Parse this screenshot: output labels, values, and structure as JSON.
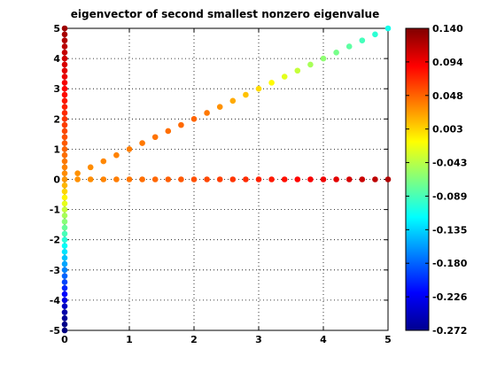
{
  "chart_data": {
    "type": "scatter",
    "title": "eigenvector of second smallest nonzero eigenvalue",
    "xlabel": "",
    "ylabel": "",
    "xlim": [
      0,
      5
    ],
    "ylim": [
      -5,
      5
    ],
    "xticks": [
      0,
      1,
      2,
      3,
      4,
      5
    ],
    "yticks": [
      -5,
      -4,
      -3,
      -2,
      -1,
      0,
      1,
      2,
      3,
      4,
      5
    ],
    "grid": true,
    "colormap": "jet",
    "clim": [
      -0.272,
      0.14
    ],
    "colorbar_ticks": [
      "0.140",
      "0.094",
      "0.048",
      "0.003",
      "-0.043",
      "-0.089",
      "-0.135",
      "-0.180",
      "-0.226",
      "-0.272"
    ],
    "series": [
      {
        "x": [
          0,
          0,
          0,
          0,
          0,
          0,
          0,
          0,
          0,
          0,
          0,
          0,
          0,
          0,
          0,
          0,
          0,
          0,
          0,
          0,
          0,
          0,
          0,
          0,
          0,
          0,
          0,
          0,
          0,
          0,
          0,
          0,
          0,
          0,
          0,
          0,
          0,
          0,
          0,
          0,
          0,
          0,
          0,
          0,
          0,
          0,
          0,
          0,
          0,
          0,
          0
        ],
        "y": [
          5,
          4.8,
          4.6,
          4.4,
          4.2,
          4,
          3.8,
          3.6,
          3.4,
          3.2,
          3,
          2.8,
          2.6,
          2.4,
          2.2,
          2,
          1.8,
          1.6,
          1.4,
          1.2,
          1,
          0.8,
          0.6,
          0.4,
          0.2,
          0,
          -0.2,
          -0.4,
          -0.6,
          -0.8,
          -1,
          -1.2,
          -1.4,
          -1.6,
          -1.8,
          -2,
          -2.2,
          -2.4,
          -2.6,
          -2.8,
          -3,
          -3.2,
          -3.4,
          -3.6,
          -3.8,
          -4,
          -4.2,
          -4.4,
          -4.6,
          -4.8,
          -5
        ],
        "c": [
          0.128,
          0.124,
          0.12,
          0.116,
          0.112,
          0.108,
          0.104,
          0.1,
          0.096,
          0.092,
          0.088,
          0.084,
          0.08,
          0.076,
          0.072,
          0.068,
          0.064,
          0.06,
          0.056,
          0.052,
          0.048,
          0.044,
          0.04,
          0.036,
          0.032,
          0.028,
          0.015,
          0.002,
          -0.011,
          -0.024,
          -0.037,
          -0.05,
          -0.063,
          -0.076,
          -0.089,
          -0.102,
          -0.115,
          -0.128,
          -0.141,
          -0.154,
          -0.167,
          -0.18,
          -0.193,
          -0.206,
          -0.219,
          -0.232,
          -0.245,
          -0.255,
          -0.262,
          -0.268,
          -0.272
        ]
      },
      {
        "x": [
          0.2,
          0.4,
          0.6,
          0.8,
          1,
          1.2,
          1.4,
          1.6,
          1.8,
          2,
          2.2,
          2.4,
          2.6,
          2.8,
          3,
          3.2,
          3.4,
          3.6,
          3.8,
          4,
          4.2,
          4.4,
          4.6,
          4.8,
          5
        ],
        "y": [
          0,
          0,
          0,
          0,
          0,
          0,
          0,
          0,
          0,
          0,
          0,
          0,
          0,
          0,
          0,
          0,
          0,
          0,
          0,
          0,
          0,
          0,
          0,
          0,
          0
        ],
        "c": [
          0.03,
          0.032,
          0.035,
          0.038,
          0.041,
          0.044,
          0.047,
          0.05,
          0.053,
          0.056,
          0.06,
          0.063,
          0.067,
          0.071,
          0.075,
          0.079,
          0.083,
          0.087,
          0.091,
          0.095,
          0.1,
          0.105,
          0.11,
          0.115,
          0.12
        ]
      },
      {
        "x": [
          0.2,
          0.4,
          0.6,
          0.8,
          1,
          1.2,
          1.4,
          1.6,
          1.8,
          2,
          2.2,
          2.4,
          2.6,
          2.8,
          3,
          3.2,
          3.4,
          3.6,
          3.8,
          4,
          4.2,
          4.4,
          4.6,
          4.8,
          5
        ],
        "y": [
          0.2,
          0.4,
          0.6,
          0.8,
          1,
          1.2,
          1.4,
          1.6,
          1.8,
          2,
          2.2,
          2.4,
          2.6,
          2.8,
          3,
          3.2,
          3.4,
          3.6,
          3.8,
          4,
          4.2,
          4.4,
          4.6,
          4.8,
          5
        ],
        "c": [
          0.03,
          0.032,
          0.034,
          0.036,
          0.038,
          0.04,
          0.042,
          0.044,
          0.046,
          0.048,
          0.04,
          0.03,
          0.02,
          0.01,
          0.0,
          -0.013,
          -0.026,
          -0.038,
          -0.05,
          -0.06,
          -0.07,
          -0.08,
          -0.09,
          -0.1,
          -0.11
        ]
      }
    ]
  }
}
